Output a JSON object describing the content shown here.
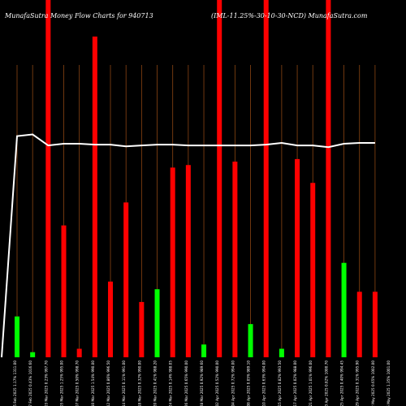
{
  "chart_data": {
    "type": "bar",
    "title_left": "MunafaSutra  Money Flow  Charts for 940713",
    "title_right": "(IML-11.25%-30-10-30-NCD) MunafaSutra.com",
    "colors": {
      "up": "#00ff00",
      "down": "#ff0000",
      "line": "#ffffff",
      "guide": "#8b4513",
      "background": "#000000"
    },
    "categories": [
      "25 Feb 2025 1.17% 1311.00",
      "27 Feb 2025 0.43% 1016.60",
      "03 Mar 2025 0.23% 997.70",
      "05 Mar 2025 1.25% 995.00",
      "07 Mar 2025 0.50% 998.70",
      "10 Mar 2025 1.54% 990.00",
      "12 Mar 2025 0.86% 996.50",
      "14 Mar 2025 0.11% 991.00",
      "18 Mar 2025 0.32% 990.00",
      "20 Mar 2025 0.41% 988.20",
      "24 Mar 2025 0.14% 988.05",
      "26 Mar 2025 0.65% 990.00",
      "28 Mar 2025 0.92% 989.60",
      "02 Apr 2025 0.52% 990.00",
      "04 Apr 2025 0.72% 994.00",
      "08 Apr 2025 0.05% 989.10",
      "10 Apr 2025 0.63% 994.00",
      "15 Apr 2025 0.82% 993.50",
      "17 Apr 2025 0.02% 988.00",
      "21 Apr 2025 1.01% 996.00",
      "23 Apr 2025 0.82% 1000.70",
      "25 Apr 2025 0.40% 994.45",
      "29 Apr 2025 0.31% 995.90",
      "02 May 2025 0.65% 1002.00",
      "06 May 2025 1.35% 1001.00"
    ],
    "bars": [
      {
        "value": 48,
        "color": "up"
      },
      {
        "value": 6,
        "color": "up"
      },
      {
        "value": 420,
        "color": "down"
      },
      {
        "value": 155,
        "color": "down"
      },
      {
        "value": 10,
        "color": "down"
      },
      {
        "value": 377,
        "color": "down"
      },
      {
        "value": 89,
        "color": "down"
      },
      {
        "value": 182,
        "color": "down"
      },
      {
        "value": 65,
        "color": "down"
      },
      {
        "value": 80,
        "color": "up"
      },
      {
        "value": 223,
        "color": "down"
      },
      {
        "value": 226,
        "color": "down"
      },
      {
        "value": 15,
        "color": "up"
      },
      {
        "value": 420,
        "color": "down"
      },
      {
        "value": 230,
        "color": "down"
      },
      {
        "value": 39,
        "color": "up"
      },
      {
        "value": 420,
        "color": "down"
      },
      {
        "value": 10,
        "color": "up"
      },
      {
        "value": 233,
        "color": "down"
      },
      {
        "value": 205,
        "color": "down"
      },
      {
        "value": 420,
        "color": "down"
      },
      {
        "value": 111,
        "color": "up"
      },
      {
        "value": 77,
        "color": "down"
      },
      {
        "value": 77,
        "color": "down"
      }
    ],
    "line": [
      260,
      262,
      249,
      251,
      251,
      250,
      250,
      248,
      249,
      250,
      250,
      249,
      249,
      249,
      249,
      249,
      250,
      252,
      249,
      249,
      247,
      251,
      252,
      252
    ],
    "line_start": 0,
    "ylim": [
      0,
      420
    ]
  }
}
